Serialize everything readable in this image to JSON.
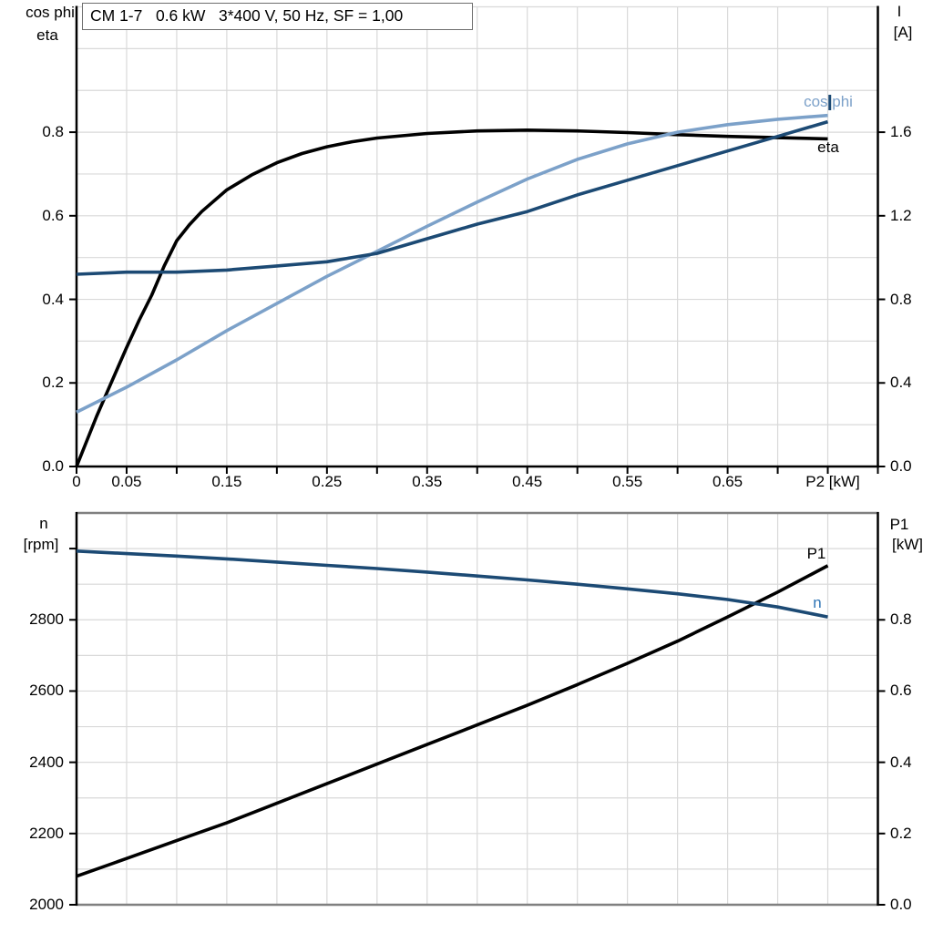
{
  "colors": {
    "black": "#000000",
    "dark_blue": "#1C4A74",
    "light_blue": "#7CA1C9",
    "n_label_blue": "#2E74B5",
    "grid": "#D9D9D9",
    "frame_gray": "#808080",
    "title_border": "#6e6e6e"
  },
  "chart_data": [
    {
      "id": "top",
      "type": "line",
      "title": "CM 1-7   0.6 kW   3*400 V, 50 Hz, SF = 1,00",
      "x_axis": {
        "label": "P2 [kW]",
        "min": 0,
        "max": 0.8,
        "tick_step": 0.05,
        "labeled_tick_values": [
          0,
          0.05,
          0.15,
          0.25,
          0.35,
          0.45,
          0.55,
          0.65
        ],
        "labeled_ticks": [
          "0",
          "0.05",
          "0.15",
          "0.25",
          "0.35",
          "0.45",
          "0.55",
          "0.65"
        ]
      },
      "y_left": {
        "label_lines": [
          "cos phi",
          "eta"
        ],
        "min": 0,
        "max": 1.1,
        "grid_step": 0.1,
        "ticks": [
          0,
          0.2,
          0.4,
          0.6,
          0.8
        ],
        "tick_labels": [
          "0.0",
          "0.2",
          "0.4",
          "0.6",
          "0.8"
        ]
      },
      "y_right": {
        "label_lines": [
          "I",
          "[A]"
        ],
        "min": 0,
        "max": 2.2,
        "ticks": [
          0,
          0.4,
          0.8,
          1.2,
          1.6
        ],
        "tick_labels": [
          "0.0",
          "0.4",
          "0.8",
          "1.2",
          "1.6"
        ]
      },
      "series": [
        {
          "name": "eta",
          "label": "eta",
          "axis": "left",
          "color_key": "black",
          "x": [
            0,
            0.01,
            0.02,
            0.03,
            0.04,
            0.05,
            0.0625,
            0.075,
            0.0875,
            0.1,
            0.1125,
            0.125,
            0.15,
            0.175,
            0.2,
            0.225,
            0.25,
            0.275,
            0.3,
            0.35,
            0.4,
            0.45,
            0.5,
            0.55,
            0.6,
            0.65,
            0.7,
            0.75
          ],
          "y": [
            0,
            0.06,
            0.12,
            0.175,
            0.23,
            0.285,
            0.35,
            0.41,
            0.48,
            0.54,
            0.578,
            0.61,
            0.662,
            0.698,
            0.727,
            0.749,
            0.765,
            0.777,
            0.786,
            0.797,
            0.803,
            0.805,
            0.803,
            0.799,
            0.794,
            0.79,
            0.787,
            0.784
          ]
        },
        {
          "name": "cos phi",
          "label": "cos phi",
          "axis": "left",
          "color_key": "light_blue",
          "x": [
            0,
            0.05,
            0.1,
            0.15,
            0.2,
            0.25,
            0.3,
            0.35,
            0.4,
            0.45,
            0.5,
            0.55,
            0.6,
            0.65,
            0.7,
            0.75
          ],
          "y": [
            0.13,
            0.19,
            0.255,
            0.325,
            0.39,
            0.455,
            0.515,
            0.575,
            0.633,
            0.688,
            0.735,
            0.772,
            0.8,
            0.818,
            0.831,
            0.84
          ]
        },
        {
          "name": "I",
          "label": "",
          "axis": "right",
          "color_key": "dark_blue",
          "x": [
            0,
            0.05,
            0.1,
            0.15,
            0.2,
            0.25,
            0.3,
            0.35,
            0.4,
            0.45,
            0.5,
            0.55,
            0.6,
            0.65,
            0.7,
            0.75
          ],
          "y": [
            0.92,
            0.93,
            0.93,
            0.94,
            0.96,
            0.98,
            1.02,
            1.09,
            1.16,
            1.22,
            1.3,
            1.37,
            1.44,
            1.51,
            1.58,
            1.65
          ]
        }
      ],
      "marker": {
        "x_kw": 0.752,
        "color_key": "dark_blue"
      }
    },
    {
      "id": "bottom",
      "type": "line",
      "x_axis": {
        "min": 0,
        "max": 0.8,
        "tick_step": null,
        "labeled_tick_values": [],
        "labeled_ticks": []
      },
      "y_left": {
        "label_lines": [
          "n",
          "[rpm]"
        ],
        "min": 2000,
        "max": 3100,
        "grid_step": 100,
        "ticks": [
          2000,
          2200,
          2400,
          2600,
          2800,
          3000
        ],
        "tick_labels": [
          "2000",
          "2200",
          "2400",
          "2600",
          "2800",
          ""
        ]
      },
      "y_right": {
        "label_lines": [
          "P1",
          "[kW]"
        ],
        "min": 0,
        "max": 1.1,
        "ticks": [
          0,
          0.2,
          0.4,
          0.6,
          0.8
        ],
        "tick_labels": [
          "0.0",
          "0.2",
          "0.4",
          "0.6",
          "0.8"
        ]
      },
      "series": [
        {
          "name": "P1",
          "label": "P1",
          "axis": "right",
          "color_key": "black",
          "x": [
            0,
            0.05,
            0.1,
            0.15,
            0.2,
            0.25,
            0.3,
            0.35,
            0.4,
            0.45,
            0.5,
            0.55,
            0.6,
            0.65,
            0.7,
            0.75
          ],
          "y": [
            0.08,
            0.13,
            0.18,
            0.23,
            0.285,
            0.34,
            0.395,
            0.45,
            0.505,
            0.56,
            0.618,
            0.678,
            0.74,
            0.808,
            0.878,
            0.952
          ]
        },
        {
          "name": "n",
          "label": "n",
          "axis": "left",
          "color_key": "dark_blue",
          "x": [
            0,
            0.05,
            0.1,
            0.15,
            0.2,
            0.25,
            0.3,
            0.35,
            0.4,
            0.45,
            0.5,
            0.55,
            0.6,
            0.65,
            0.7,
            0.75
          ],
          "y": [
            2993,
            2986,
            2979,
            2971,
            2962,
            2953,
            2944,
            2934,
            2923,
            2912,
            2900,
            2887,
            2873,
            2857,
            2836,
            2808
          ]
        }
      ]
    }
  ]
}
